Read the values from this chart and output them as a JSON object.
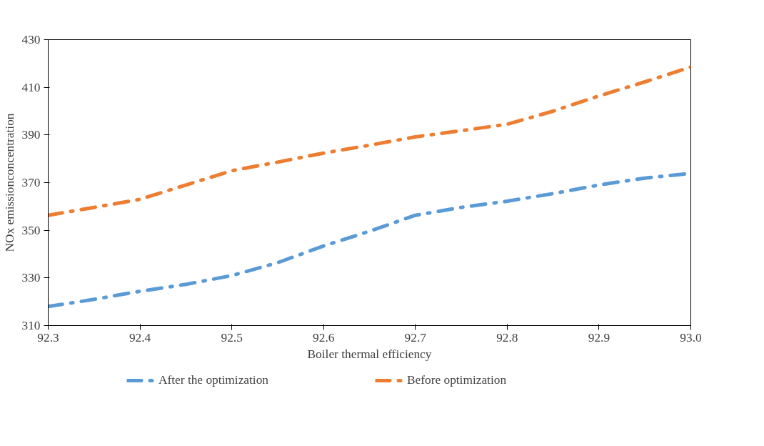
{
  "chart_data": {
    "type": "line",
    "xlabel": "Boiler thermal efficiency",
    "ylabel": "NOx emissionconcentration",
    "x": [
      92.3,
      92.35,
      92.4,
      92.45,
      92.5,
      92.55,
      92.6,
      92.65,
      92.7,
      92.75,
      92.8,
      92.85,
      92.9,
      92.95,
      93.0
    ],
    "series": [
      {
        "name": "After the optimization",
        "color": "#5b9bd5",
        "values": [
          318,
          321,
          324.4,
          327.3,
          331,
          336.4,
          343.4,
          349.6,
          356.3,
          359.6,
          362.2,
          365.4,
          369,
          371.9,
          373.9
        ]
      },
      {
        "name": "Before optimization",
        "color": "#ed7d31",
        "values": [
          356.3,
          359.6,
          363,
          369,
          375,
          378.6,
          382.4,
          385.7,
          389.2,
          391.8,
          394.5,
          400,
          406.4,
          412.3,
          418.5
        ]
      }
    ],
    "xlim": [
      92.3,
      93.0
    ],
    "xticks": [
      92.3,
      92.4,
      92.5,
      92.6,
      92.7,
      92.8,
      92.9,
      {
        "value": 93.0,
        "label": "93.0"
      }
    ],
    "ylim": [
      310,
      430
    ],
    "yticks": [
      310,
      330,
      350,
      370,
      390,
      410,
      430
    ],
    "grid": false,
    "legend": "bottom",
    "line_style": "dashdot",
    "marker": "none"
  }
}
